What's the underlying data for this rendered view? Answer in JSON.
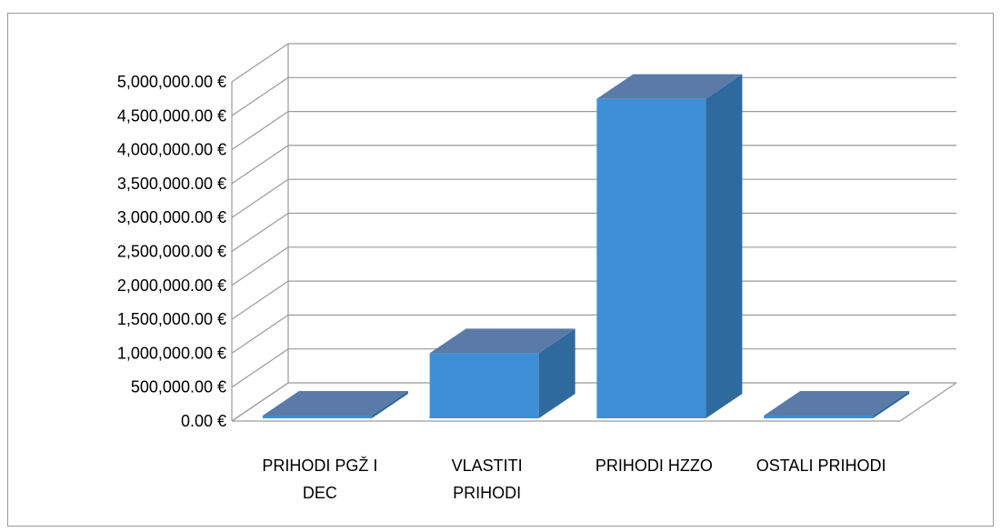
{
  "chart_data": {
    "type": "bar",
    "categories": [
      [
        "PRIHODI PGŽ I",
        "DEC"
      ],
      [
        "VLASTITI",
        "PRIHODI"
      ],
      [
        "PRIHODI HZZO"
      ],
      [
        "OSTALI PRIHODI"
      ]
    ],
    "values": [
      30000,
      1000000,
      4750000,
      0
    ],
    "y_tick_labels": [
      "0.00 €",
      "500,000.00 €",
      "1,000,000.00 €",
      "1,500,000.00 €",
      "2,000,000.00 €",
      "2,500,000.00 €",
      "3,000,000.00 €",
      "3,500,000.00 €",
      "4,000,000.00 €",
      "4,500,000.00 €",
      "5,000,000.00 €"
    ],
    "ylim": [
      0,
      5000000
    ],
    "grid": true,
    "legend": "none",
    "colors": {
      "front": "#3f8fd6",
      "top": "#5a7aa8",
      "side": "#2f6a9e",
      "grid": "#9a9a9a"
    }
  }
}
